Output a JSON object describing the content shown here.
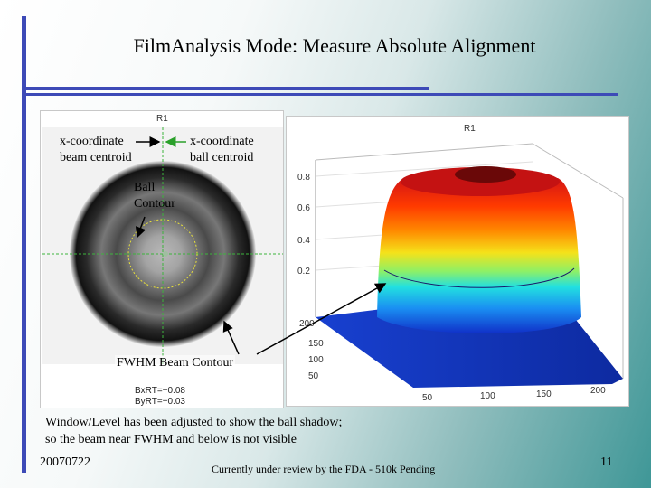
{
  "slide": {
    "title": "FilmAnalysis Mode: Measure Absolute Alignment",
    "footer_date": "20070722",
    "footer_center": "Currently under review by the FDA - 510k Pending",
    "page_number": "11"
  },
  "left_figure": {
    "title": "R1",
    "bx_label": "BxRT=+0.08",
    "by_label": "ByRT=+0.03"
  },
  "right_figure": {
    "title": "R1",
    "z_ticks": [
      "0.8",
      "0.6",
      "0.4",
      "0.2"
    ],
    "y_ticks": [
      "200",
      "150",
      "100",
      "50"
    ],
    "x_ticks": [
      "50",
      "100",
      "150",
      "200"
    ],
    "colormap": "jet"
  },
  "annotations": {
    "beam_centroid_line1": "x-coordinate",
    "beam_centroid_line2": "beam centroid",
    "ball_centroid_line1": "x-coordinate",
    "ball_centroid_line2": "ball centroid",
    "ball_contour_line1": "Ball",
    "ball_contour_line2": "Contour",
    "fwhm_contour": "FWHM Beam Contour",
    "caption_line1": "Window/Level has been adjusted to show the ball shadow;",
    "caption_line2": "so the beam near FWHM and below is not visible"
  },
  "colors": {
    "accent_bar": "#3d4ab7",
    "arrow_green": "#2aa02a",
    "crosshair_green": "#3cb43c",
    "ball_contour_yellow": "#e8e03a"
  }
}
